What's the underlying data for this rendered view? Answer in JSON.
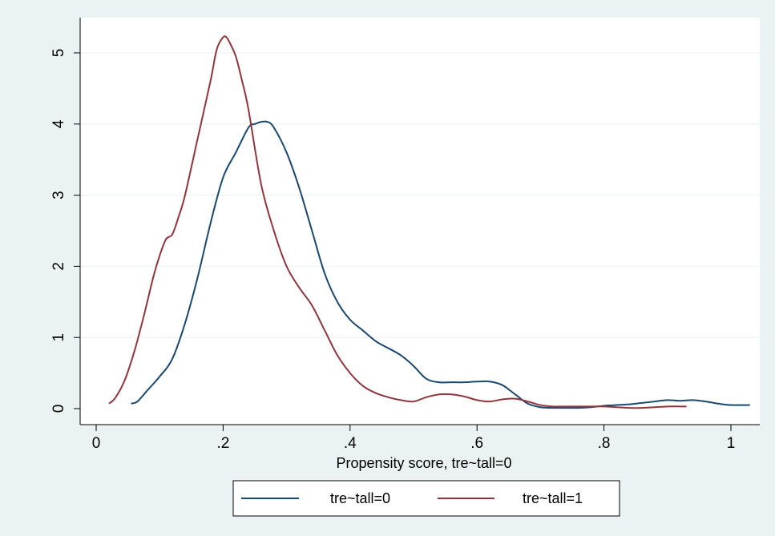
{
  "chart_data": {
    "type": "line",
    "title": "",
    "xlabel": "Propensity score, tre~tall=0",
    "ylabel": "",
    "xlim": [
      0,
      1.03
    ],
    "ylim": [
      0,
      5.3
    ],
    "xticks": [
      0,
      0.2,
      0.4,
      0.6,
      0.8,
      1
    ],
    "xtick_labels": [
      "0",
      ".2",
      ".4",
      ".6",
      ".8",
      "1"
    ],
    "yticks": [
      0,
      1,
      2,
      3,
      4,
      5
    ],
    "ytick_labels": [
      "0",
      "1",
      "2",
      "3",
      "4",
      "5"
    ],
    "grid": "horizontal",
    "legend_position": "bottom",
    "colors": {
      "background": "#eaf2f3",
      "plot_area": "#ffffff",
      "grid": "#eaf2f3",
      "series_0": "#1a476f",
      "series_1": "#90353b"
    },
    "series": [
      {
        "name": "tre~tall=0",
        "x": [
          0.055,
          0.065,
          0.08,
          0.1,
          0.12,
          0.14,
          0.16,
          0.18,
          0.2,
          0.22,
          0.24,
          0.25,
          0.26,
          0.27,
          0.28,
          0.3,
          0.32,
          0.34,
          0.36,
          0.38,
          0.4,
          0.42,
          0.44,
          0.46,
          0.48,
          0.5,
          0.52,
          0.54,
          0.56,
          0.58,
          0.6,
          0.62,
          0.64,
          0.66,
          0.68,
          0.7,
          0.72,
          0.74,
          0.76,
          0.78,
          0.8,
          0.82,
          0.84,
          0.86,
          0.88,
          0.9,
          0.92,
          0.94,
          0.96,
          0.98,
          1.0,
          1.03
        ],
        "y": [
          0.07,
          0.1,
          0.25,
          0.45,
          0.7,
          1.2,
          1.85,
          2.6,
          3.25,
          3.6,
          3.95,
          4.0,
          4.03,
          4.03,
          3.95,
          3.6,
          3.1,
          2.5,
          1.9,
          1.5,
          1.25,
          1.1,
          0.95,
          0.85,
          0.75,
          0.6,
          0.42,
          0.37,
          0.37,
          0.37,
          0.38,
          0.38,
          0.33,
          0.2,
          0.07,
          0.02,
          0.01,
          0.01,
          0.01,
          0.02,
          0.04,
          0.05,
          0.06,
          0.08,
          0.1,
          0.12,
          0.11,
          0.12,
          0.1,
          0.07,
          0.05,
          0.05
        ]
      },
      {
        "name": "tre~tall=1",
        "x": [
          0.02,
          0.03,
          0.045,
          0.06,
          0.075,
          0.09,
          0.1,
          0.11,
          0.12,
          0.13,
          0.14,
          0.16,
          0.18,
          0.19,
          0.2,
          0.205,
          0.21,
          0.22,
          0.23,
          0.24,
          0.26,
          0.28,
          0.3,
          0.32,
          0.34,
          0.36,
          0.38,
          0.4,
          0.42,
          0.44,
          0.46,
          0.48,
          0.5,
          0.52,
          0.54,
          0.56,
          0.58,
          0.6,
          0.62,
          0.64,
          0.66,
          0.68,
          0.7,
          0.72,
          0.74,
          0.76,
          0.78,
          0.8,
          0.82,
          0.84,
          0.86,
          0.88,
          0.9,
          0.93
        ],
        "y": [
          0.07,
          0.15,
          0.4,
          0.8,
          1.3,
          1.85,
          2.15,
          2.38,
          2.45,
          2.7,
          3.0,
          3.8,
          4.6,
          5.05,
          5.22,
          5.22,
          5.15,
          4.95,
          4.6,
          4.2,
          3.15,
          2.5,
          2.0,
          1.7,
          1.45,
          1.1,
          0.75,
          0.5,
          0.32,
          0.22,
          0.16,
          0.12,
          0.1,
          0.16,
          0.2,
          0.2,
          0.17,
          0.12,
          0.1,
          0.13,
          0.14,
          0.1,
          0.05,
          0.03,
          0.03,
          0.03,
          0.03,
          0.03,
          0.02,
          0.01,
          0.01,
          0.02,
          0.03,
          0.03
        ]
      }
    ]
  }
}
